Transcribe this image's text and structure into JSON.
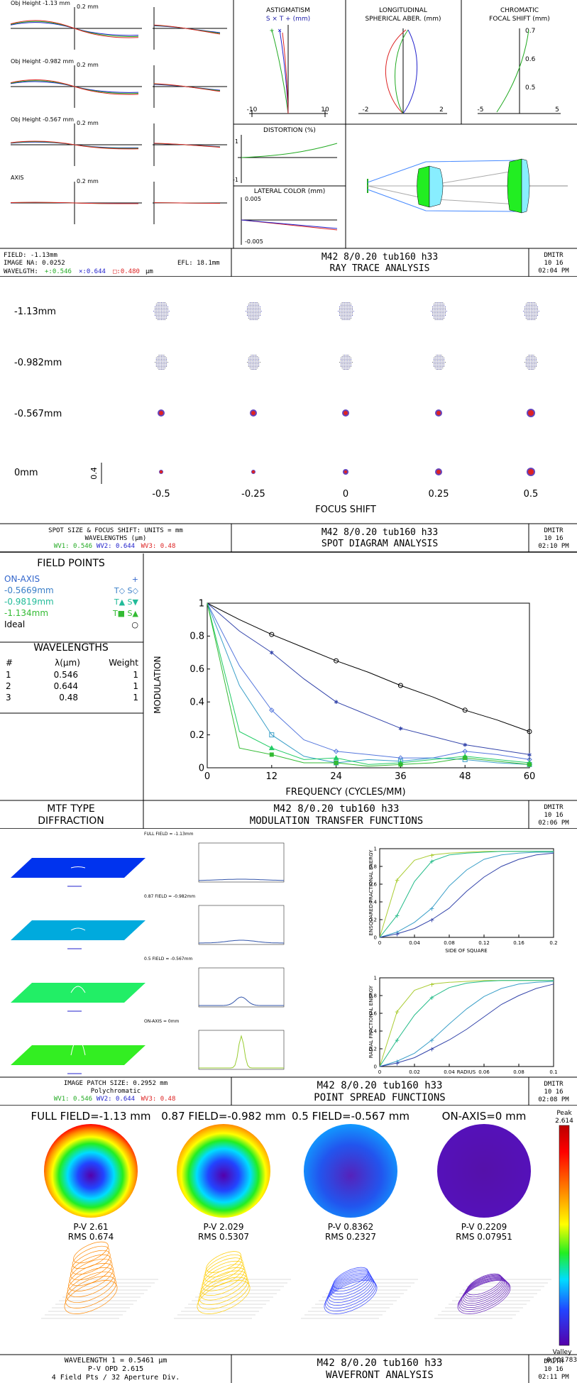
{
  "colors": {
    "wl1": "#22aa22",
    "wl2": "#2222cc",
    "wl3": "#dd2222",
    "t1": "#3a7fc8",
    "t2": "#22bb88",
    "t3": "#33bb33",
    "grid": "#000000"
  },
  "ray_trace": {
    "fans": [
      {
        "label": "Obj Height -1.13 mm",
        "scale": "0.2 mm"
      },
      {
        "label": "Obj Height -0.982 mm",
        "scale": "0.2 mm"
      },
      {
        "label": "Obj Height -0.567 mm",
        "scale": "0.2 mm"
      },
      {
        "label": "AXIS",
        "scale": "0.2 mm"
      }
    ],
    "astig": {
      "title": "ASTIGMATISM",
      "subtitle": "S × T + (mm)",
      "ticks": [
        "-10",
        "10"
      ]
    },
    "spherical": {
      "title1": "LONGITUDINAL",
      "title2": "SPHERICAL ABER. (mm)",
      "ticks": [
        "-2",
        "2"
      ]
    },
    "chromatic": {
      "title1": "CHROMATIC",
      "title2": "FOCAL SHIFT (mm)",
      "ticks": [
        "-5",
        "5"
      ],
      "yticks": [
        "0.7",
        "0.6",
        "0.5"
      ]
    },
    "distortion": {
      "title": "DISTORTION (%)",
      "ticks": [
        "-1",
        "1"
      ]
    },
    "lateral": {
      "title": "LATERAL COLOR (mm)",
      "ticks": [
        "0.005",
        "-0.005"
      ]
    },
    "footer": {
      "field": "FIELD: -1.13mm",
      "na": "IMAGE NA: 0.0252",
      "efl": "EFL: 18.1mm",
      "wavelength_label": "WAVELGTH:",
      "wl1": "+:0.546",
      "wl2": "×:0.644",
      "wl3": "□:0.480",
      "wl_unit": "µm",
      "title1": "M42 8/0.20 tub160 h33",
      "title2": "RAY TRACE ANALYSIS",
      "user": "DMITR",
      "date": "10 16",
      "time": "02:04 PM"
    }
  },
  "spot": {
    "rows": [
      "-1.13mm",
      "-0.982mm",
      "-0.567mm",
      "0mm"
    ],
    "cols": [
      "-0.5",
      "-0.25",
      "0",
      "0.25",
      "0.5"
    ],
    "scale": "0.4",
    "xlabel": "FOCUS SHIFT",
    "footer": {
      "line1": "SPOT SIZE & FOCUS SHIFT: UNITS = mm",
      "line2": "WAVELENGTHS (µm)",
      "wv": [
        "WV1: 0.546",
        "WV2: 0.644",
        "WV3: 0.48"
      ],
      "title1": "M42 8/0.20 tub160 h33",
      "title2": "SPOT DIAGRAM ANALYSIS",
      "user": "DMITR",
      "date": "10 16",
      "time": "02:10 PM"
    }
  },
  "mtf": {
    "field_points_title": "FIELD POINTS",
    "field_points": [
      {
        "name": "ON-AXIS",
        "marks": "+"
      },
      {
        "name": "-0.5669mm",
        "marks": "T◇ S◇"
      },
      {
        "name": "-0.9819mm",
        "marks": "T▲ S▼"
      },
      {
        "name": "-1.134mm",
        "marks": "T■ S▲"
      },
      {
        "name": "Ideal",
        "marks": "○"
      }
    ],
    "wavelengths_title": "WAVELENGTHS",
    "wl_headers": [
      "#",
      "λ(µm)",
      "Weight"
    ],
    "wavelengths": [
      {
        "n": "1",
        "wl": "0.546",
        "w": "1"
      },
      {
        "n": "2",
        "wl": "0.644",
        "w": "1"
      },
      {
        "n": "3",
        "wl": "0.48",
        "w": "1"
      }
    ],
    "footer": {
      "type1": "MTF TYPE",
      "type2": "DIFFRACTION",
      "title1": "M42 8/0.20 tub160 h33",
      "title2": "MODULATION TRANSFER FUNCTIONS",
      "user": "DMITR",
      "date": "10 16",
      "time": "02:06 PM"
    }
  },
  "psf": {
    "fields": [
      "FULL FIELD = -1.13mm",
      "0.87 FIELD = -0.982mm",
      "0.5 FIELD = -0.567mm",
      "ON-AXIS = 0mm"
    ],
    "ee_ylabel": "ENSQUARED FRACTIONAL ENERGY",
    "ee_xlabel": "SIDE OF SQUARE",
    "re_ylabel": "RADIAL FRACTIONAL ENERGY",
    "re_xlabel": "RADIUS",
    "footer": {
      "line1": "IMAGE PATCH SIZE: 0.2952 mm",
      "line2": "Polychromatic",
      "wv": [
        "WV1: 0.546",
        "WV2: 0.644",
        "WV3: 0.48"
      ],
      "title1": "M42 8/0.20 tub160 h33",
      "title2": "POINT SPREAD FUNCTIONS",
      "user": "DMITR",
      "date": "10 16",
      "time": "02:08 PM"
    }
  },
  "wavefront": {
    "fields": [
      "FULL FIELD=-1.13 mm",
      "0.87 FIELD=-0.982 mm",
      "0.5 FIELD=-0.567 mm",
      "ON-AXIS=0 mm"
    ],
    "pv": [
      "P-V 2.61",
      "P-V 2.029",
      "P-V 0.8362",
      "P-V 0.2209"
    ],
    "rms": [
      "RMS 0.674",
      "RMS 0.5307",
      "RMS 0.2327",
      "RMS 0.07951"
    ],
    "peak_label": "Peak",
    "peak": "2.614",
    "valley_label": "Valley",
    "valley": "-0.001783",
    "footer": {
      "line1": "WAVELENGTH 1 = 0.5461 µm",
      "line2": "P-V OPD 2.615",
      "line3": "4 Field Pts / 32 Aperture Div.",
      "title1": "M42 8/0.20 tub160 h33",
      "title2": "WAVEFRONT ANALYSIS",
      "user": "DMITR",
      "date": "10 16",
      "time": "02:11 PM"
    }
  },
  "chart_data": [
    {
      "type": "line",
      "title": "MODULATION TRANSFER FUNCTIONS",
      "xlabel": "FREQUENCY (CYCLES/MM)",
      "ylabel": "MODULATION",
      "xlim": [
        0,
        60
      ],
      "ylim": [
        0,
        1
      ],
      "xticks": [
        0,
        12,
        24,
        36,
        48,
        60
      ],
      "yticks": [
        0,
        0.2,
        0.4,
        0.6,
        0.8,
        1
      ],
      "x": [
        0,
        6,
        12,
        18,
        24,
        30,
        36,
        42,
        48,
        54,
        60
      ],
      "series": [
        {
          "name": "Ideal",
          "marker": "circle",
          "values": [
            1,
            0.9,
            0.81,
            0.73,
            0.65,
            0.58,
            0.5,
            0.43,
            0.35,
            0.29,
            0.22
          ]
        },
        {
          "name": "ON-AXIS",
          "marker": "star",
          "values": [
            1,
            0.83,
            0.7,
            0.54,
            0.4,
            0.32,
            0.24,
            0.19,
            0.14,
            0.11,
            0.08
          ]
        },
        {
          "name": "-0.5669mm",
          "marker": "diamond",
          "values": [
            1,
            0.62,
            0.35,
            0.17,
            0.1,
            0.08,
            0.06,
            0.06,
            0.1,
            0.08,
            0.05
          ]
        },
        {
          "name": "-0.9819mm",
          "marker": "square",
          "values": [
            1,
            0.5,
            0.2,
            0.07,
            0.03,
            0.05,
            0.04,
            0.06,
            0.05,
            0.03,
            0.02
          ]
        },
        {
          "name": "-1.134mm",
          "marker": "triangle",
          "values": [
            1,
            0.22,
            0.12,
            0.05,
            0.06,
            0.02,
            0.03,
            0.05,
            0.07,
            0.05,
            0.03
          ]
        },
        {
          "name": "-1.134mm S",
          "marker": "filled-square",
          "values": [
            1,
            0.12,
            0.08,
            0.03,
            0.03,
            0.01,
            0.02,
            0.03,
            0.06,
            0.04,
            0.02
          ]
        }
      ]
    },
    {
      "type": "line",
      "title": "",
      "xlabel": "SIDE OF SQUARE",
      "ylabel": "ENSQUARED FRACTIONAL ENERGY",
      "xlim": [
        0,
        0.2
      ],
      "ylim": [
        0,
        1
      ],
      "xticks": [
        0,
        0.04,
        0.08,
        0.12,
        0.16,
        0.2
      ],
      "yticks": [
        0,
        0.2,
        0.4,
        0.6,
        0.8,
        1
      ],
      "x": [
        0,
        0.02,
        0.04,
        0.06,
        0.08,
        0.1,
        0.12,
        0.14,
        0.16,
        0.18,
        0.2
      ],
      "series": [
        {
          "name": "on-axis",
          "values": [
            0,
            0.65,
            0.87,
            0.93,
            0.95,
            0.96,
            0.97,
            0.97,
            0.97,
            0.97,
            0.97
          ]
        },
        {
          "name": "0.5 field",
          "values": [
            0,
            0.25,
            0.63,
            0.86,
            0.93,
            0.95,
            0.96,
            0.97,
            0.97,
            0.97,
            0.97
          ]
        },
        {
          "name": "0.87 field",
          "values": [
            0,
            0.06,
            0.17,
            0.33,
            0.58,
            0.76,
            0.88,
            0.93,
            0.95,
            0.96,
            0.96
          ]
        },
        {
          "name": "full field",
          "values": [
            0,
            0.04,
            0.1,
            0.2,
            0.33,
            0.52,
            0.68,
            0.8,
            0.88,
            0.93,
            0.95
          ]
        }
      ]
    },
    {
      "type": "line",
      "title": "",
      "xlabel": "RADIUS",
      "ylabel": "RADIAL FRACTIONAL ENERGY",
      "xlim": [
        0,
        0.1
      ],
      "ylim": [
        0,
        1
      ],
      "xticks": [
        0,
        0.02,
        0.04,
        0.06,
        0.08,
        0.1
      ],
      "yticks": [
        0,
        0.2,
        0.4,
        0.6,
        0.8,
        1
      ],
      "x": [
        0,
        0.01,
        0.02,
        0.03,
        0.04,
        0.05,
        0.06,
        0.07,
        0.08,
        0.09,
        0.1
      ],
      "series": [
        {
          "name": "on-axis",
          "values": [
            0,
            0.62,
            0.86,
            0.93,
            0.95,
            0.96,
            0.97,
            0.97,
            0.97,
            0.97,
            0.97
          ]
        },
        {
          "name": "0.5 field",
          "values": [
            0,
            0.3,
            0.58,
            0.78,
            0.89,
            0.94,
            0.96,
            0.97,
            0.97,
            0.97,
            0.97
          ]
        },
        {
          "name": "0.87 field",
          "values": [
            0,
            0.06,
            0.15,
            0.3,
            0.48,
            0.65,
            0.79,
            0.88,
            0.93,
            0.95,
            0.96
          ]
        },
        {
          "name": "full field",
          "values": [
            0,
            0.04,
            0.1,
            0.2,
            0.3,
            0.42,
            0.56,
            0.7,
            0.8,
            0.88,
            0.93
          ]
        }
      ]
    }
  ]
}
